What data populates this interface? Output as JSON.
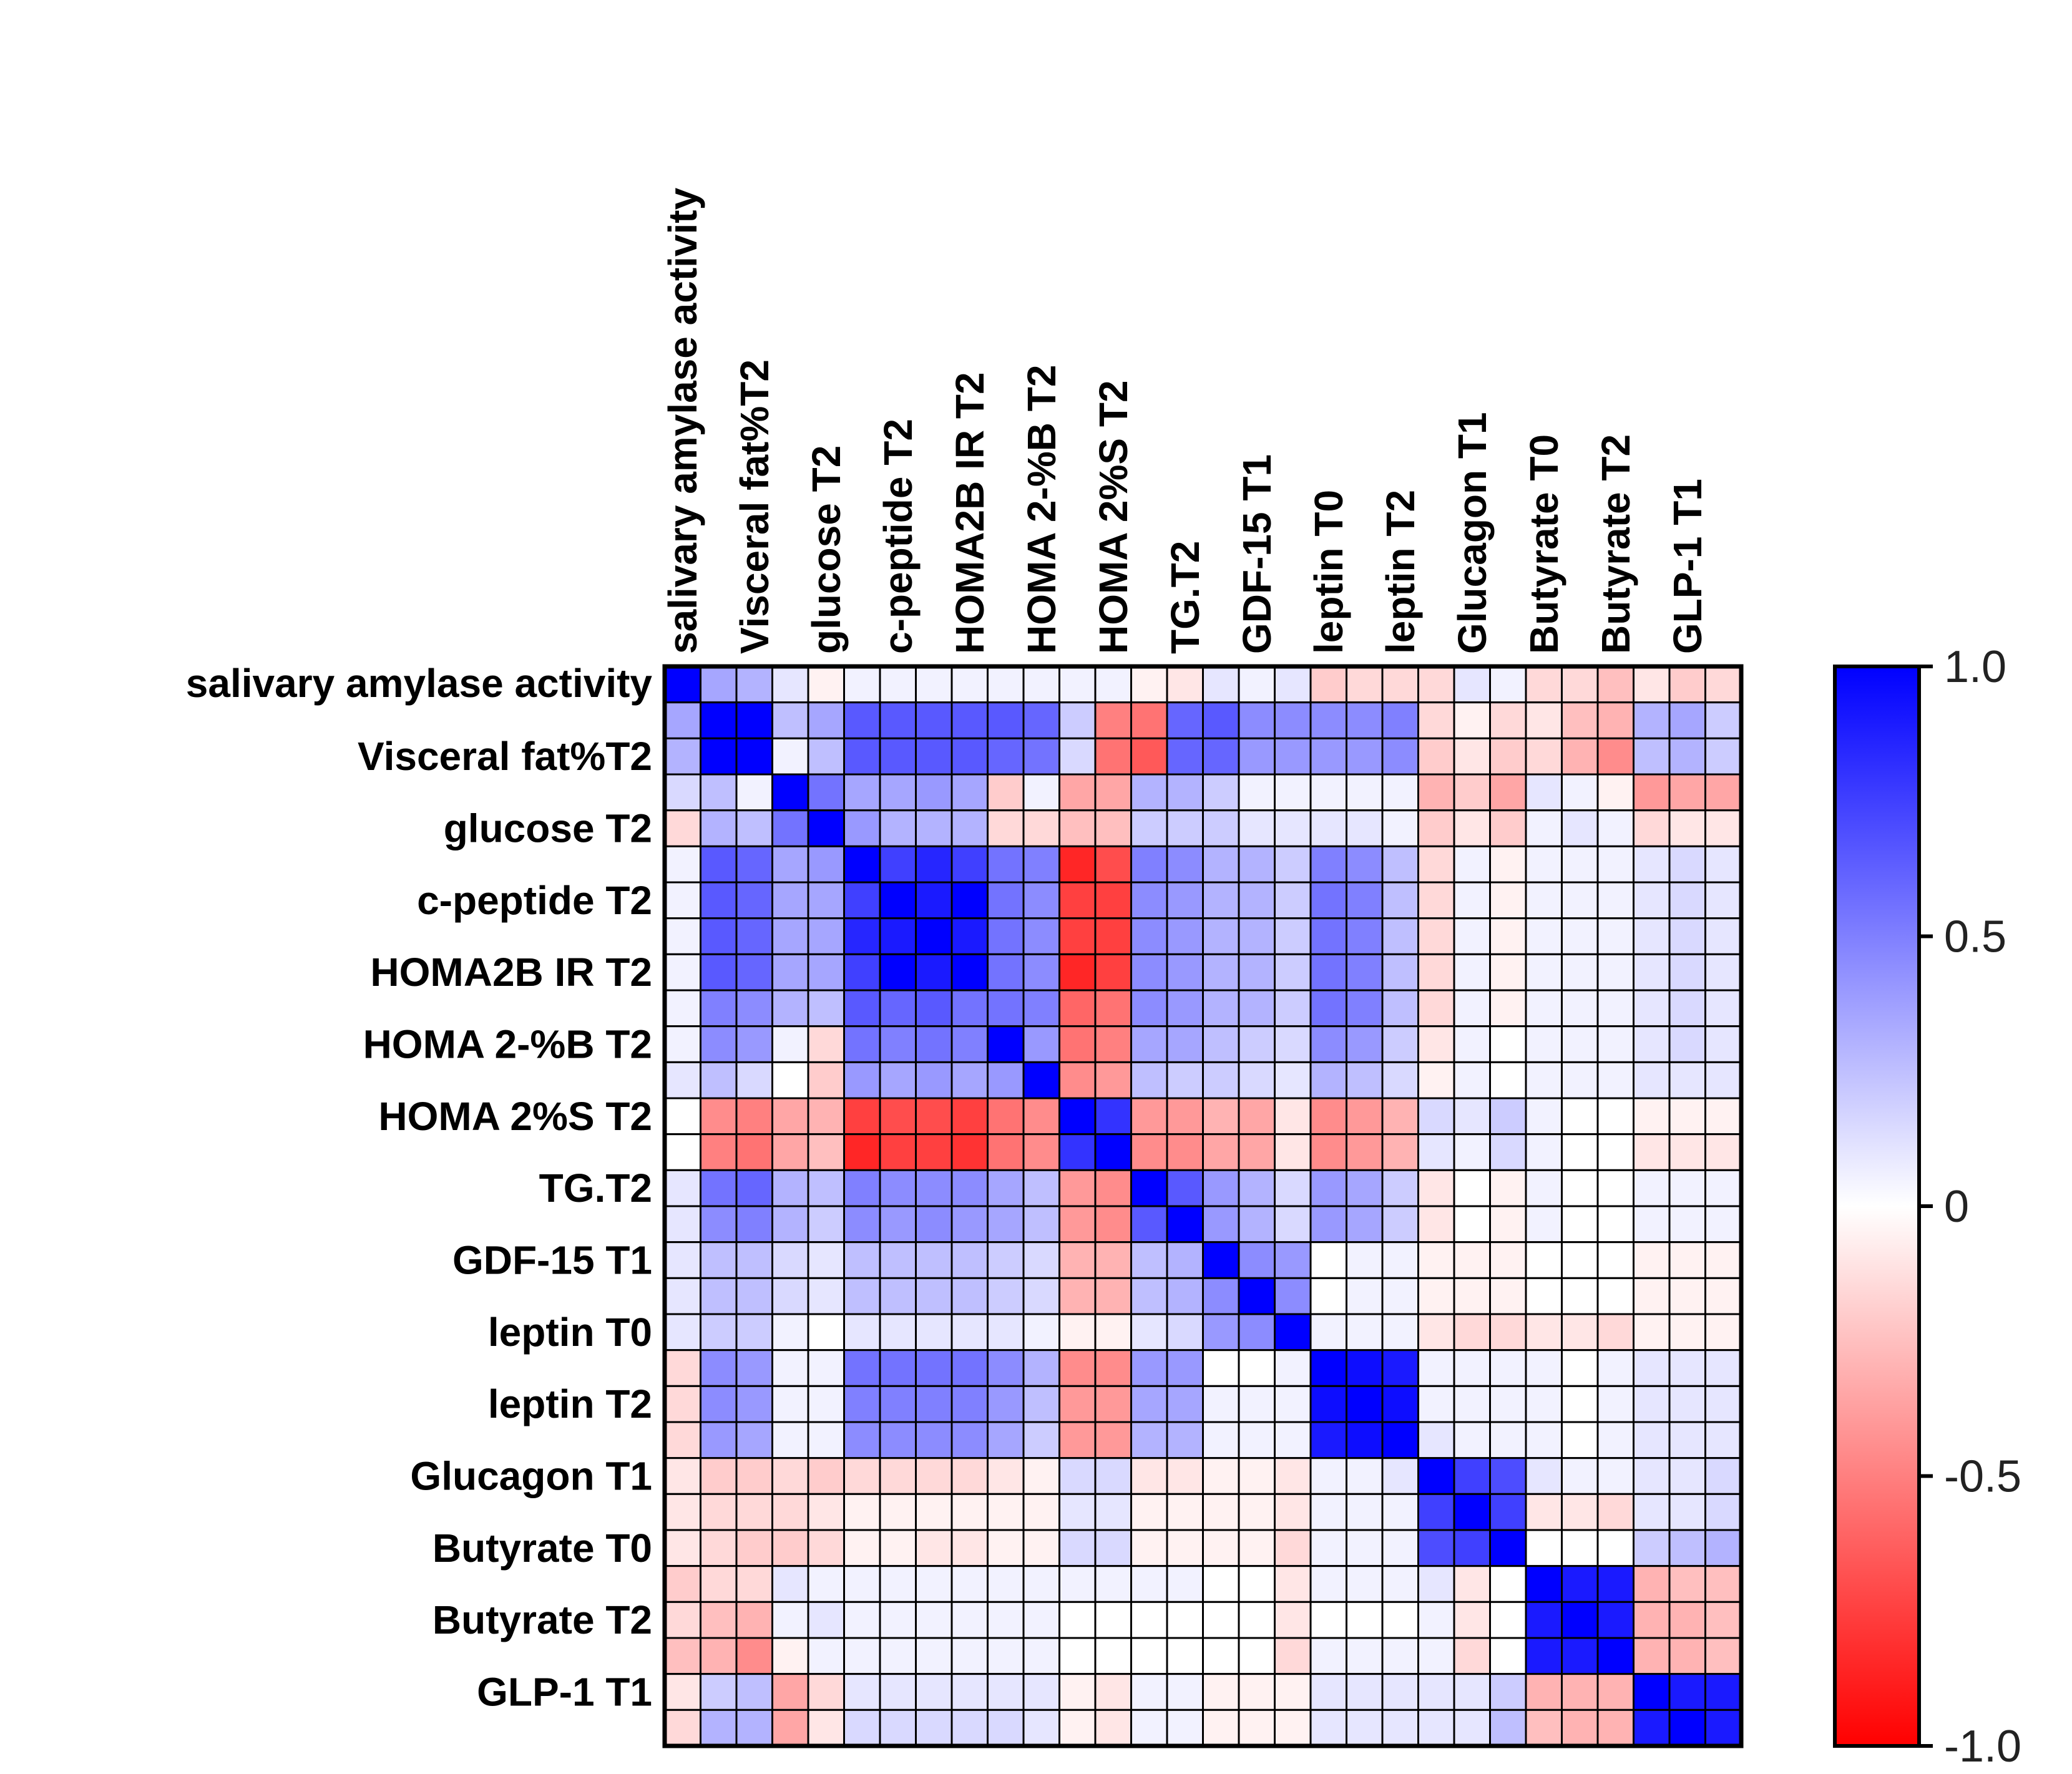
{
  "chart_data": {
    "type": "heatmap",
    "title": "",
    "column_labels": [
      "salivary amylase activity",
      "Visceral fat%T2",
      "glucose T2",
      "c-peptide T2",
      "HOMA2B IR T2",
      "HOMA 2-%B T2",
      "HOMA 2%S T2",
      "TG.T2",
      "GDF-15 T1",
      "leptin T0",
      "leptin T2",
      "Glucagon T1",
      "Butyrate T0",
      "Butyrate T2",
      "GLP-1 T1"
    ],
    "row_labels": [
      "salivary amylase activity",
      "Visceral fat%T2",
      "glucose T2",
      "c-peptide T2",
      "HOMA2B IR T2",
      "HOMA 2-%B T2",
      "HOMA 2%S T2",
      "TG.T2",
      "GDF-15 T1",
      "leptin T0",
      "leptin T2",
      "Glucagon T1",
      "Butyrate T0",
      "Butyrate T2",
      "GLP-1 T1"
    ],
    "grid_rows": 30,
    "grid_cols": 30,
    "colorbar": {
      "min": -1.0,
      "max": 1.0,
      "ticks": [
        1.0,
        0.5,
        0,
        -0.5,
        -1.0
      ],
      "tick_labels": [
        "1.0",
        "0.5",
        "0",
        "-0.5",
        "-1.0"
      ],
      "positive_color": "#0000ff",
      "zero_color": "#ffffff",
      "negative_color": "#ff0000"
    },
    "values": [
      [
        1.0,
        0.35,
        0.3,
        0.1,
        -0.05,
        0.05,
        0.05,
        0.05,
        0.05,
        0.05,
        0.05,
        0.05,
        0.05,
        -0.05,
        -0.1,
        0.1,
        0.05,
        0.1,
        -0.2,
        -0.15,
        -0.15,
        -0.15,
        0.1,
        0.05,
        -0.15,
        -0.15,
        -0.25,
        -0.1,
        -0.2,
        -0.15
      ],
      [
        0.35,
        1.0,
        1.0,
        0.25,
        0.35,
        0.65,
        0.65,
        0.65,
        0.65,
        0.65,
        0.6,
        0.2,
        -0.5,
        -0.55,
        0.6,
        0.65,
        0.45,
        0.45,
        0.45,
        0.45,
        0.5,
        -0.15,
        -0.05,
        -0.15,
        -0.1,
        -0.25,
        -0.3,
        0.3,
        0.35,
        0.2
      ],
      [
        0.3,
        1.0,
        1.0,
        0.05,
        0.25,
        0.65,
        0.65,
        0.65,
        0.65,
        0.6,
        0.55,
        0.15,
        -0.55,
        -0.65,
        0.6,
        0.6,
        0.4,
        0.4,
        0.4,
        0.4,
        0.45,
        -0.2,
        -0.1,
        -0.2,
        -0.15,
        -0.3,
        -0.45,
        0.25,
        0.3,
        0.2
      ],
      [
        0.15,
        0.25,
        0.05,
        1.0,
        0.55,
        0.35,
        0.35,
        0.4,
        0.35,
        -0.2,
        0.05,
        -0.35,
        -0.35,
        0.3,
        0.3,
        0.2,
        0.05,
        0.05,
        0.05,
        0.05,
        0.05,
        -0.3,
        -0.2,
        -0.35,
        0.1,
        0.05,
        -0.05,
        -0.4,
        -0.35,
        -0.35
      ],
      [
        -0.15,
        0.3,
        0.25,
        0.55,
        1.0,
        0.4,
        0.3,
        0.3,
        0.3,
        -0.15,
        -0.15,
        -0.25,
        -0.25,
        0.2,
        0.2,
        0.2,
        0.1,
        0.1,
        0.1,
        0.1,
        0.05,
        -0.2,
        -0.1,
        -0.2,
        0.05,
        0.1,
        0.05,
        -0.15,
        -0.1,
        -0.1
      ],
      [
        0.05,
        0.65,
        0.6,
        0.35,
        0.4,
        1.0,
        0.75,
        0.85,
        0.75,
        0.55,
        0.5,
        -0.85,
        -0.7,
        0.5,
        0.45,
        0.3,
        0.3,
        0.2,
        0.5,
        0.45,
        0.25,
        -0.15,
        0.05,
        -0.05,
        0.05,
        0.05,
        0.05,
        0.1,
        0.15,
        0.1
      ],
      [
        0.05,
        0.65,
        0.6,
        0.35,
        0.35,
        0.75,
        1.0,
        0.9,
        1.0,
        0.55,
        0.45,
        -0.75,
        -0.75,
        0.45,
        0.4,
        0.3,
        0.3,
        0.2,
        0.55,
        0.5,
        0.25,
        -0.15,
        0.05,
        -0.05,
        0.05,
        0.05,
        0.05,
        0.1,
        0.15,
        0.1
      ],
      [
        0.05,
        0.65,
        0.6,
        0.35,
        0.35,
        0.85,
        0.9,
        1.0,
        0.9,
        0.55,
        0.45,
        -0.75,
        -0.75,
        0.45,
        0.4,
        0.3,
        0.3,
        0.2,
        0.55,
        0.5,
        0.25,
        -0.15,
        0.05,
        -0.05,
        0.05,
        0.05,
        0.05,
        0.1,
        0.15,
        0.1
      ],
      [
        0.05,
        0.65,
        0.6,
        0.35,
        0.35,
        0.75,
        1.0,
        0.9,
        1.0,
        0.55,
        0.45,
        -0.85,
        -0.75,
        0.45,
        0.4,
        0.3,
        0.3,
        0.2,
        0.55,
        0.5,
        0.25,
        -0.15,
        0.05,
        -0.05,
        0.05,
        0.05,
        0.05,
        0.1,
        0.15,
        0.1
      ],
      [
        0.05,
        0.5,
        0.45,
        0.3,
        0.25,
        0.65,
        0.6,
        0.65,
        0.55,
        0.55,
        0.5,
        -0.6,
        -0.55,
        0.45,
        0.4,
        0.3,
        0.3,
        0.2,
        0.55,
        0.5,
        0.25,
        -0.15,
        0.05,
        -0.05,
        0.05,
        0.05,
        0.05,
        0.1,
        0.15,
        0.1
      ],
      [
        0.05,
        0.45,
        0.4,
        0.05,
        -0.15,
        0.55,
        0.5,
        0.55,
        0.5,
        1.0,
        0.4,
        -0.55,
        -0.5,
        0.35,
        0.35,
        0.25,
        0.2,
        0.15,
        0.45,
        0.4,
        0.2,
        -0.1,
        0.05,
        0.0,
        0.05,
        0.05,
        0.05,
        0.1,
        0.15,
        0.1
      ],
      [
        0.1,
        0.25,
        0.15,
        0.0,
        -0.2,
        0.4,
        0.35,
        0.4,
        0.35,
        0.4,
        1.0,
        -0.45,
        -0.4,
        0.25,
        0.2,
        0.2,
        0.15,
        0.1,
        0.3,
        0.25,
        0.15,
        -0.05,
        0.05,
        0.0,
        0.05,
        0.05,
        0.05,
        0.1,
        0.1,
        0.1
      ],
      [
        0.0,
        -0.45,
        -0.5,
        -0.35,
        -0.3,
        -0.75,
        -0.7,
        -0.7,
        -0.75,
        -0.55,
        -0.45,
        1.0,
        0.8,
        -0.4,
        -0.4,
        -0.3,
        -0.35,
        -0.1,
        -0.45,
        -0.4,
        -0.3,
        0.15,
        0.1,
        0.2,
        0.05,
        0.0,
        0.0,
        -0.05,
        -0.05,
        -0.05
      ],
      [
        0.0,
        -0.5,
        -0.55,
        -0.35,
        -0.25,
        -0.85,
        -0.75,
        -0.75,
        -0.8,
        -0.55,
        -0.45,
        0.8,
        1.0,
        -0.45,
        -0.45,
        -0.35,
        -0.35,
        -0.1,
        -0.45,
        -0.4,
        -0.3,
        0.1,
        0.05,
        0.15,
        0.05,
        0.0,
        0.0,
        -0.1,
        -0.1,
        -0.1
      ],
      [
        0.1,
        0.55,
        0.6,
        0.3,
        0.25,
        0.5,
        0.45,
        0.45,
        0.45,
        0.35,
        0.25,
        -0.4,
        -0.45,
        1.0,
        0.65,
        0.4,
        0.3,
        0.15,
        0.4,
        0.35,
        0.2,
        -0.1,
        0.0,
        -0.05,
        0.05,
        0.0,
        0.0,
        0.05,
        0.05,
        0.05
      ],
      [
        0.1,
        0.45,
        0.5,
        0.3,
        0.2,
        0.45,
        0.4,
        0.45,
        0.4,
        0.35,
        0.25,
        -0.4,
        -0.45,
        0.65,
        1.0,
        0.4,
        0.3,
        0.15,
        0.4,
        0.35,
        0.2,
        -0.1,
        0.0,
        -0.05,
        0.05,
        0.0,
        0.0,
        0.05,
        0.05,
        0.05
      ],
      [
        0.1,
        0.25,
        0.25,
        0.15,
        0.1,
        0.25,
        0.25,
        0.25,
        0.25,
        0.2,
        0.15,
        -0.3,
        -0.3,
        0.25,
        0.3,
        1.0,
        0.45,
        0.4,
        0.0,
        0.05,
        0.05,
        -0.05,
        -0.05,
        -0.05,
        0.0,
        0.0,
        0.0,
        -0.05,
        -0.05,
        -0.05
      ],
      [
        0.1,
        0.25,
        0.25,
        0.15,
        0.1,
        0.25,
        0.25,
        0.25,
        0.25,
        0.2,
        0.15,
        -0.3,
        -0.3,
        0.25,
        0.3,
        0.45,
        1.0,
        0.45,
        0.0,
        0.05,
        0.05,
        -0.05,
        -0.05,
        -0.05,
        0.0,
        0.0,
        0.0,
        -0.05,
        -0.05,
        -0.05
      ],
      [
        0.1,
        0.2,
        0.2,
        0.05,
        0.0,
        0.1,
        0.1,
        0.1,
        0.1,
        0.1,
        0.05,
        -0.05,
        -0.05,
        0.1,
        0.15,
        0.4,
        0.45,
        1.0,
        0.05,
        0.05,
        0.05,
        -0.1,
        -0.15,
        -0.15,
        -0.1,
        -0.1,
        -0.15,
        -0.05,
        -0.05,
        -0.05
      ],
      [
        -0.15,
        0.45,
        0.4,
        0.05,
        0.05,
        0.55,
        0.55,
        0.55,
        0.55,
        0.45,
        0.3,
        -0.45,
        -0.45,
        0.4,
        0.4,
        0.0,
        0.0,
        0.05,
        1.0,
        0.95,
        0.9,
        0.05,
        0.05,
        0.05,
        0.05,
        0.0,
        0.05,
        0.1,
        0.1,
        0.1
      ],
      [
        -0.15,
        0.45,
        0.4,
        0.05,
        0.05,
        0.5,
        0.5,
        0.5,
        0.5,
        0.4,
        0.25,
        -0.4,
        -0.4,
        0.35,
        0.35,
        0.05,
        0.05,
        0.05,
        0.95,
        1.0,
        0.95,
        0.05,
        0.05,
        0.05,
        0.05,
        0.0,
        0.05,
        0.1,
        0.1,
        0.1
      ],
      [
        -0.15,
        0.4,
        0.35,
        0.05,
        0.05,
        0.45,
        0.45,
        0.45,
        0.45,
        0.35,
        0.2,
        -0.4,
        -0.4,
        0.3,
        0.3,
        0.05,
        0.05,
        0.05,
        0.9,
        0.95,
        1.0,
        0.1,
        0.05,
        0.05,
        0.05,
        0.0,
        0.05,
        0.1,
        0.1,
        0.1
      ],
      [
        -0.1,
        -0.2,
        -0.2,
        -0.15,
        -0.2,
        -0.15,
        -0.15,
        -0.15,
        -0.15,
        -0.1,
        -0.05,
        0.15,
        0.15,
        -0.1,
        -0.1,
        -0.05,
        -0.05,
        -0.1,
        0.05,
        0.05,
        0.1,
        1.0,
        0.75,
        0.7,
        0.1,
        0.05,
        0.05,
        0.1,
        0.1,
        0.15
      ],
      [
        -0.1,
        -0.15,
        -0.15,
        -0.15,
        -0.1,
        -0.05,
        -0.05,
        -0.05,
        -0.05,
        -0.05,
        -0.05,
        0.1,
        0.1,
        -0.05,
        -0.05,
        -0.05,
        -0.05,
        -0.1,
        0.05,
        0.05,
        0.05,
        0.75,
        1.0,
        0.75,
        -0.1,
        -0.1,
        -0.15,
        0.1,
        0.1,
        0.15
      ],
      [
        -0.1,
        -0.15,
        -0.2,
        -0.2,
        -0.15,
        -0.05,
        -0.05,
        -0.1,
        -0.1,
        -0.05,
        -0.05,
        0.15,
        0.15,
        -0.05,
        -0.05,
        -0.05,
        -0.05,
        -0.15,
        0.05,
        0.05,
        0.05,
        0.7,
        0.75,
        1.0,
        0.0,
        0.0,
        0.0,
        0.2,
        0.25,
        0.3
      ],
      [
        -0.2,
        -0.15,
        -0.15,
        0.1,
        0.05,
        0.05,
        0.05,
        0.05,
        0.05,
        0.05,
        0.05,
        0.05,
        0.05,
        0.05,
        0.05,
        0.0,
        0.0,
        -0.1,
        0.05,
        0.05,
        0.05,
        0.1,
        -0.1,
        0.0,
        1.0,
        0.9,
        0.9,
        -0.3,
        -0.25,
        -0.25
      ],
      [
        -0.15,
        -0.25,
        -0.3,
        0.05,
        0.1,
        0.05,
        0.05,
        0.05,
        0.05,
        0.05,
        0.05,
        0.0,
        0.0,
        0.0,
        0.0,
        0.0,
        0.0,
        -0.1,
        0.0,
        0.0,
        0.0,
        0.05,
        -0.1,
        0.0,
        0.9,
        1.0,
        0.9,
        -0.3,
        -0.3,
        -0.25
      ],
      [
        -0.25,
        -0.3,
        -0.45,
        -0.05,
        0.05,
        0.05,
        0.05,
        0.05,
        0.05,
        0.05,
        0.05,
        0.0,
        0.0,
        0.0,
        0.0,
        0.0,
        0.0,
        -0.15,
        0.05,
        0.05,
        0.05,
        0.05,
        -0.15,
        0.0,
        0.9,
        0.9,
        1.0,
        -0.3,
        -0.3,
        -0.25
      ],
      [
        -0.1,
        0.2,
        0.25,
        -0.35,
        -0.15,
        0.1,
        0.1,
        0.1,
        0.1,
        0.1,
        0.1,
        -0.05,
        -0.1,
        0.05,
        0.05,
        -0.05,
        -0.05,
        -0.05,
        0.1,
        0.1,
        0.1,
        0.1,
        0.1,
        0.2,
        -0.3,
        -0.3,
        -0.3,
        1.0,
        0.9,
        0.9
      ],
      [
        -0.15,
        0.3,
        0.3,
        -0.35,
        -0.1,
        0.15,
        0.15,
        0.15,
        0.15,
        0.15,
        0.1,
        -0.05,
        -0.1,
        0.05,
        0.05,
        -0.05,
        -0.05,
        -0.05,
        0.1,
        0.1,
        0.1,
        0.1,
        0.1,
        0.25,
        -0.25,
        -0.3,
        -0.3,
        0.9,
        1.0,
        0.9
      ]
    ]
  }
}
